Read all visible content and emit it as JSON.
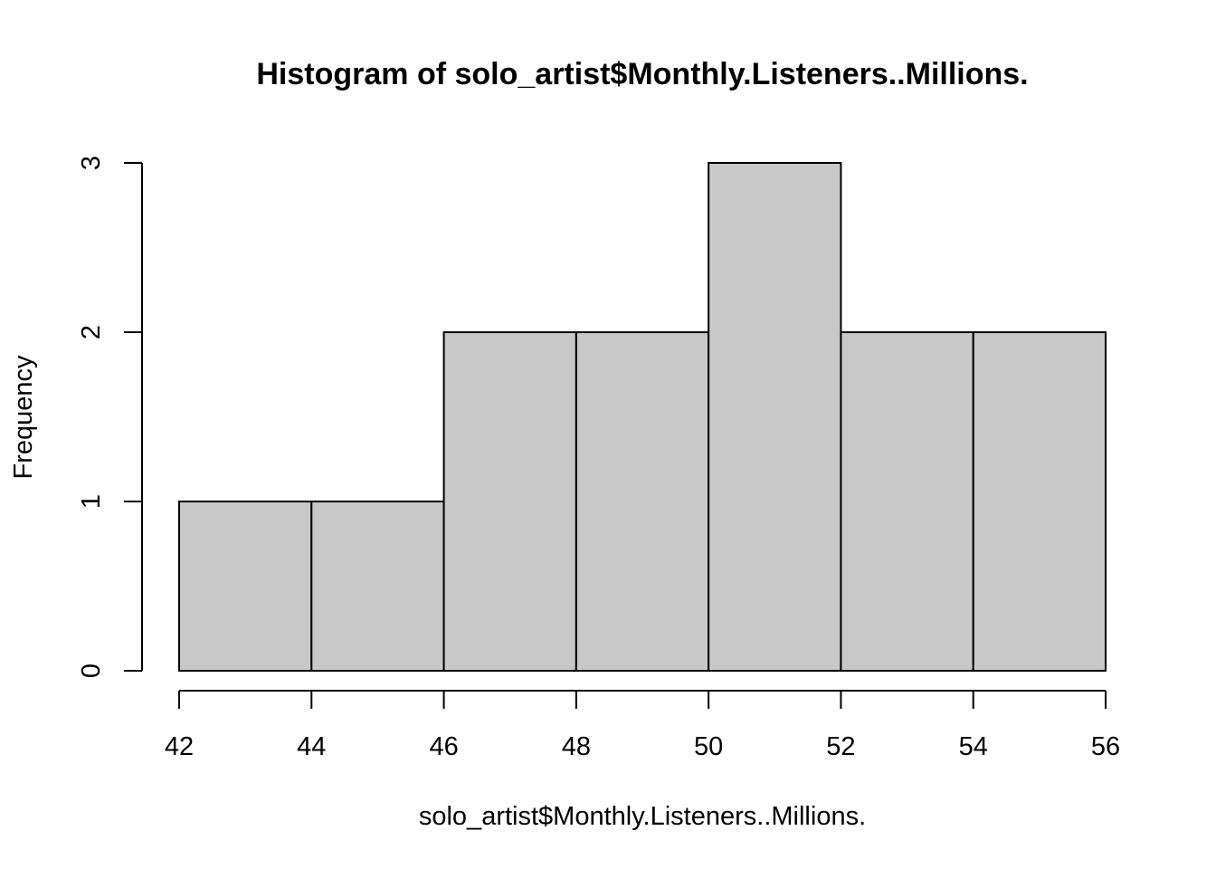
{
  "chart_data": {
    "type": "bar",
    "histogram": true,
    "title": "Histogram of solo_artist$Monthly.Listeners..Millions.",
    "xlabel": "solo_artist$Monthly.Listeners..Millions.",
    "ylabel": "Frequency",
    "bins": [
      {
        "from": 42,
        "to": 44,
        "count": 1
      },
      {
        "from": 44,
        "to": 46,
        "count": 1
      },
      {
        "from": 46,
        "to": 48,
        "count": 2
      },
      {
        "from": 48,
        "to": 50,
        "count": 2
      },
      {
        "from": 50,
        "to": 52,
        "count": 3
      },
      {
        "from": 52,
        "to": 54,
        "count": 2
      },
      {
        "from": 54,
        "to": 56,
        "count": 2
      }
    ],
    "xlim": [
      42,
      56
    ],
    "ylim": [
      0,
      3
    ],
    "x_ticks": [
      "42",
      "44",
      "46",
      "48",
      "50",
      "52",
      "54",
      "56"
    ],
    "y_ticks": [
      "0",
      "1",
      "2",
      "3"
    ],
    "grid": false,
    "legend": "none",
    "bar_color": "#c8c8c8",
    "border_color": "#000000"
  }
}
